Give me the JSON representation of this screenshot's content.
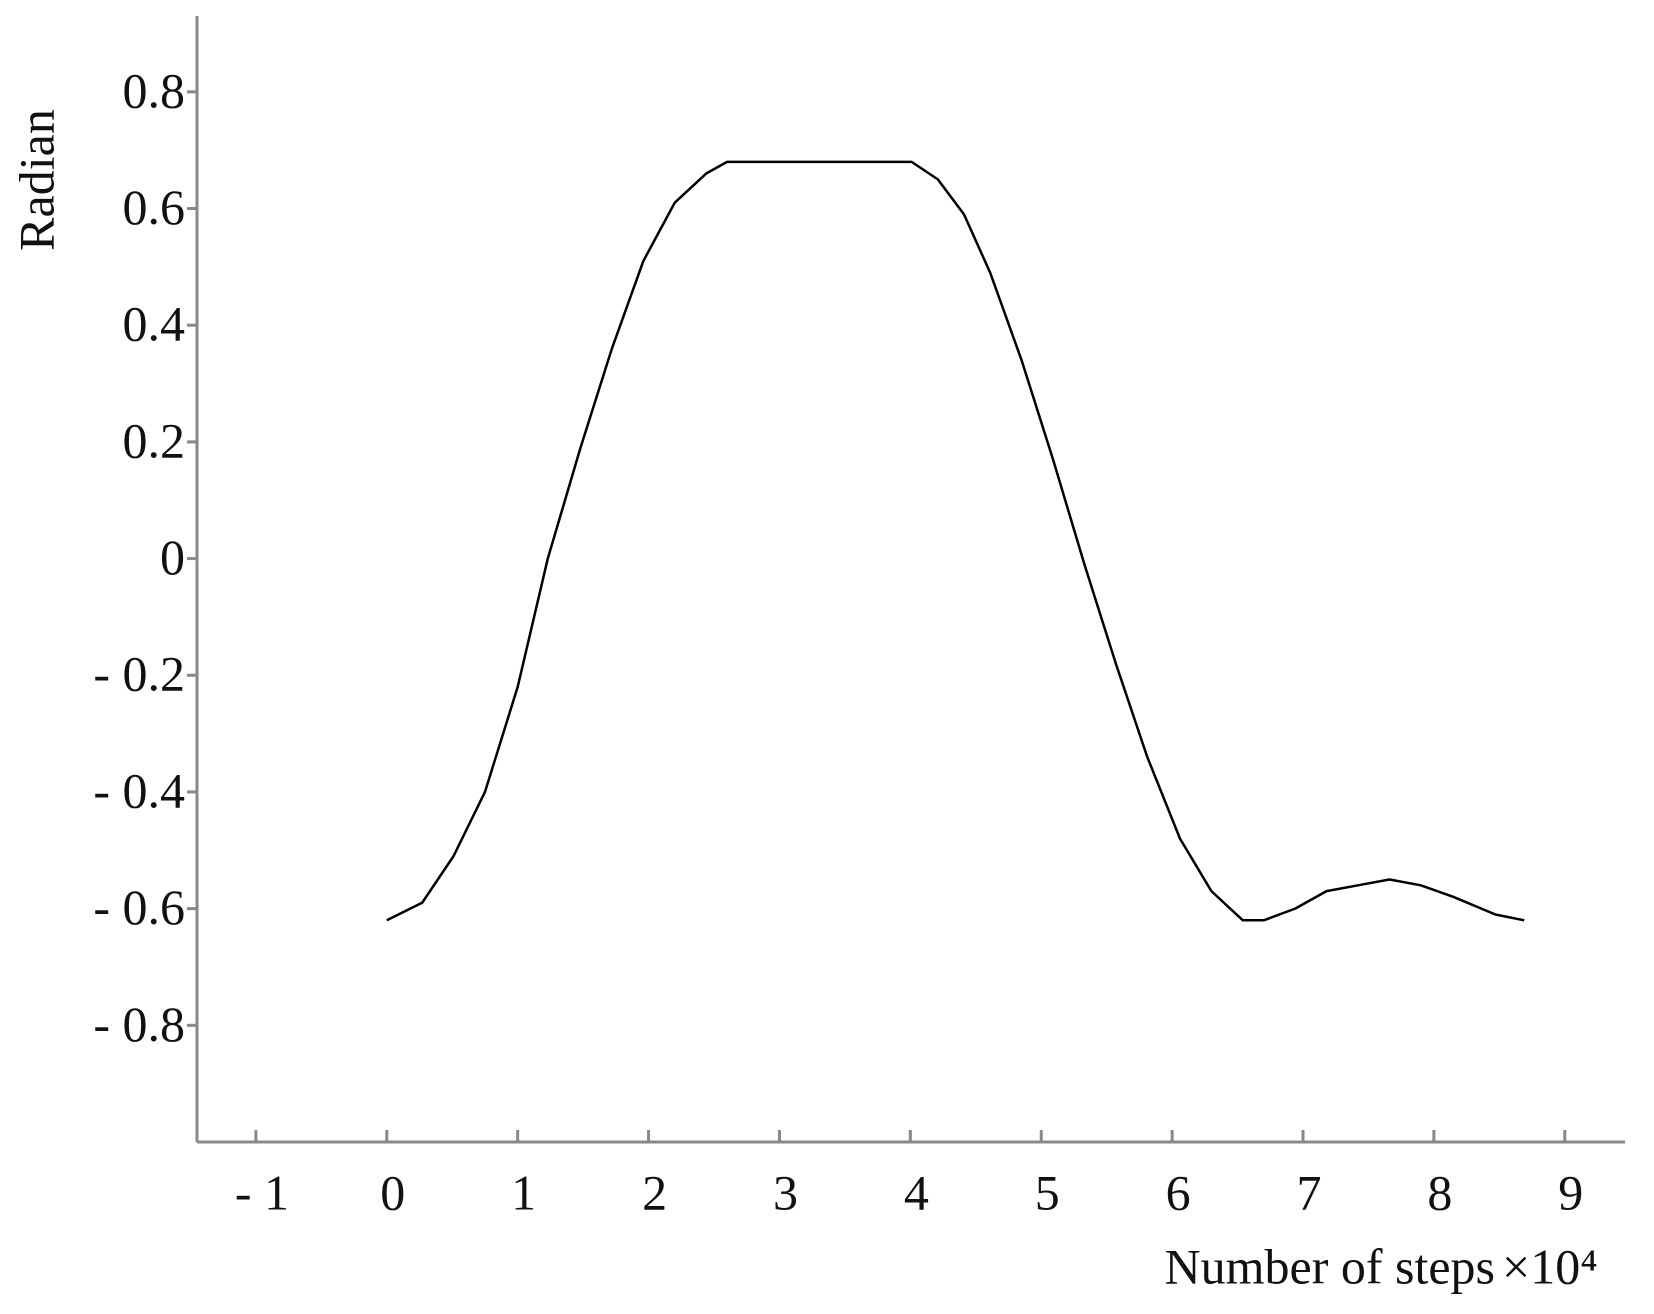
{
  "chart_data": {
    "type": "line",
    "ylabel": "Radian",
    "xlabel": "Number of steps",
    "x_scale": "×10⁴",
    "xlim": [
      -1.45,
      9.46
    ],
    "ylim": [
      -1,
      0.93
    ],
    "xticks": [
      {
        "value": -1,
        "label": "- 1"
      },
      0,
      1,
      2,
      3,
      4,
      5,
      6,
      7,
      8,
      9
    ],
    "yticks": [
      {
        "value": -0.8,
        "label": "- 0.8"
      },
      {
        "value": -0.6,
        "label": "- 0.6"
      },
      {
        "value": -0.4,
        "label": "- 0.4"
      },
      {
        "value": -0.2,
        "label": "- 0.2"
      },
      0,
      0.2,
      0.4,
      0.6,
      0.8
    ],
    "grid": false,
    "series": [
      {
        "color": "#000000",
        "x": [
          0,
          0.27,
          0.51,
          0.75,
          1.0,
          1.23,
          1.48,
          1.72,
          1.96,
          2.2,
          2.44,
          2.6,
          4.01,
          4.21,
          4.41,
          4.61,
          4.85,
          5.09,
          5.33,
          5.57,
          5.81,
          6.06,
          6.3,
          6.54,
          6.7,
          6.94,
          7.18,
          7.42,
          7.66,
          7.9,
          8.15,
          8.47,
          8.69
        ],
        "values": [
          -0.62,
          -0.59,
          -0.51,
          -0.4,
          -0.22,
          0.0,
          0.19,
          0.36,
          0.51,
          0.61,
          0.66,
          0.68,
          0.68,
          0.65,
          0.59,
          0.49,
          0.34,
          0.17,
          -0.01,
          -0.18,
          -0.34,
          -0.48,
          -0.57,
          -0.62,
          -0.62,
          -0.6,
          -0.57,
          -0.56,
          -0.55,
          -0.56,
          -0.58,
          -0.61,
          -0.62
        ]
      }
    ]
  }
}
